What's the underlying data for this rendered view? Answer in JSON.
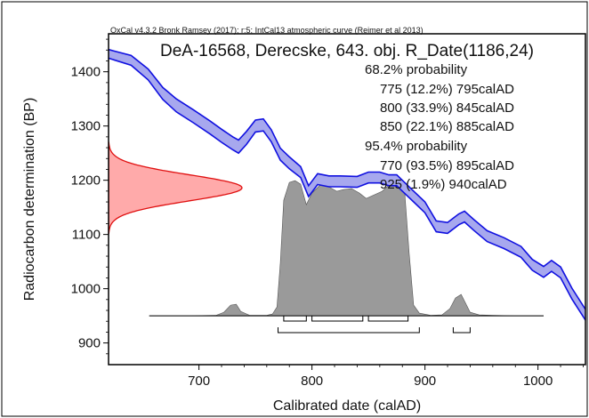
{
  "chart_data": {
    "type": "area",
    "header": "OxCal v4.3.2 Bronk Ramsey (2017); r:5; IntCal13 atmospheric curve (Reimer et al 2013)",
    "title": "DeA-16568, Derecske, 643. obj. R_Date(1186,24)",
    "xlabel": "Calibrated date (calAD)",
    "ylabel": "Radiocarbon determination (BP)",
    "xlim": [
      620,
      1042
    ],
    "ylim": [
      860,
      1470
    ],
    "xticks": [
      700,
      800,
      900,
      1000
    ],
    "yticks": [
      900,
      1000,
      1100,
      1200,
      1300,
      1400
    ],
    "colors": {
      "calibration_fill": "#a7a8ee",
      "calibration_line": "#1010e0",
      "radiocarbon_fill": "#ffaaaa",
      "radiocarbon_line": "#e01010",
      "posterior_fill": "#9a9a9a",
      "frame": "#000000"
    },
    "probability_text": [
      "68.2% probability",
      "775 (12.2%) 795calAD",
      "800 (33.9%) 845calAD",
      "850 (22.1%) 885calAD",
      "95.4% probability",
      "770 (93.5%) 895calAD",
      "925 (1.9%) 940calAD"
    ],
    "calibration_curve": {
      "x": [
        620,
        640,
        655,
        668,
        680,
        695,
        710,
        720,
        730,
        735,
        742,
        750,
        757,
        764,
        772,
        780,
        790,
        797,
        805,
        815,
        825,
        840,
        850,
        860,
        868,
        875,
        880,
        890,
        900,
        910,
        920,
        930,
        935,
        943,
        955,
        970,
        985,
        995,
        1005,
        1012,
        1020,
        1030,
        1042
      ],
      "y": [
        1433,
        1421,
        1395,
        1360,
        1338,
        1318,
        1297,
        1282,
        1268,
        1262,
        1278,
        1300,
        1302,
        1282,
        1248,
        1232,
        1215,
        1180,
        1202,
        1198,
        1198,
        1197,
        1205,
        1205,
        1200,
        1200,
        1190,
        1170,
        1150,
        1115,
        1112,
        1128,
        1133,
        1118,
        1097,
        1084,
        1068,
        1044,
        1031,
        1042,
        1030,
        991,
        952
      ],
      "half_width": [
        8,
        9,
        10,
        11,
        12,
        12,
        12,
        12,
        12,
        12,
        12,
        11,
        11,
        11,
        11,
        11,
        10,
        10,
        10,
        10,
        10,
        10,
        10,
        10,
        10,
        10,
        10,
        10,
        10,
        10,
        10,
        10,
        10,
        10,
        10,
        10,
        10,
        10,
        10,
        10,
        10,
        10,
        10
      ]
    },
    "radiocarbon_date": {
      "mean": 1186,
      "sigma": 24,
      "label": "R_Date(1186,24)"
    },
    "posterior": {
      "baseline_bp": 950,
      "baseline_range": [
        656,
        1005
      ],
      "x": [
        656,
        690,
        715,
        722,
        728,
        733,
        737,
        745,
        760,
        765,
        769,
        772,
        775,
        780,
        785,
        790,
        795,
        800,
        808,
        815,
        822,
        828,
        835,
        842,
        848,
        855,
        862,
        868,
        873,
        878,
        882,
        886,
        890,
        895,
        905,
        915,
        922,
        927,
        932,
        936,
        940,
        948,
        960,
        980,
        1005
      ],
      "height": [
        0,
        0,
        0.5,
        4,
        12,
        13,
        5,
        0.5,
        0.5,
        2,
        10,
        60,
        130,
        150,
        152,
        148,
        125,
        138,
        148,
        145,
        140,
        142,
        143,
        138,
        132,
        136,
        140,
        147,
        152,
        150,
        140,
        70,
        12,
        3,
        0.5,
        1,
        8,
        20,
        24,
        14,
        4,
        1,
        0.5,
        0,
        0
      ]
    },
    "ranges_68": [
      [
        775,
        795
      ],
      [
        800,
        845
      ],
      [
        850,
        885
      ]
    ],
    "ranges_95": [
      [
        770,
        895
      ],
      [
        925,
        940
      ]
    ]
  }
}
